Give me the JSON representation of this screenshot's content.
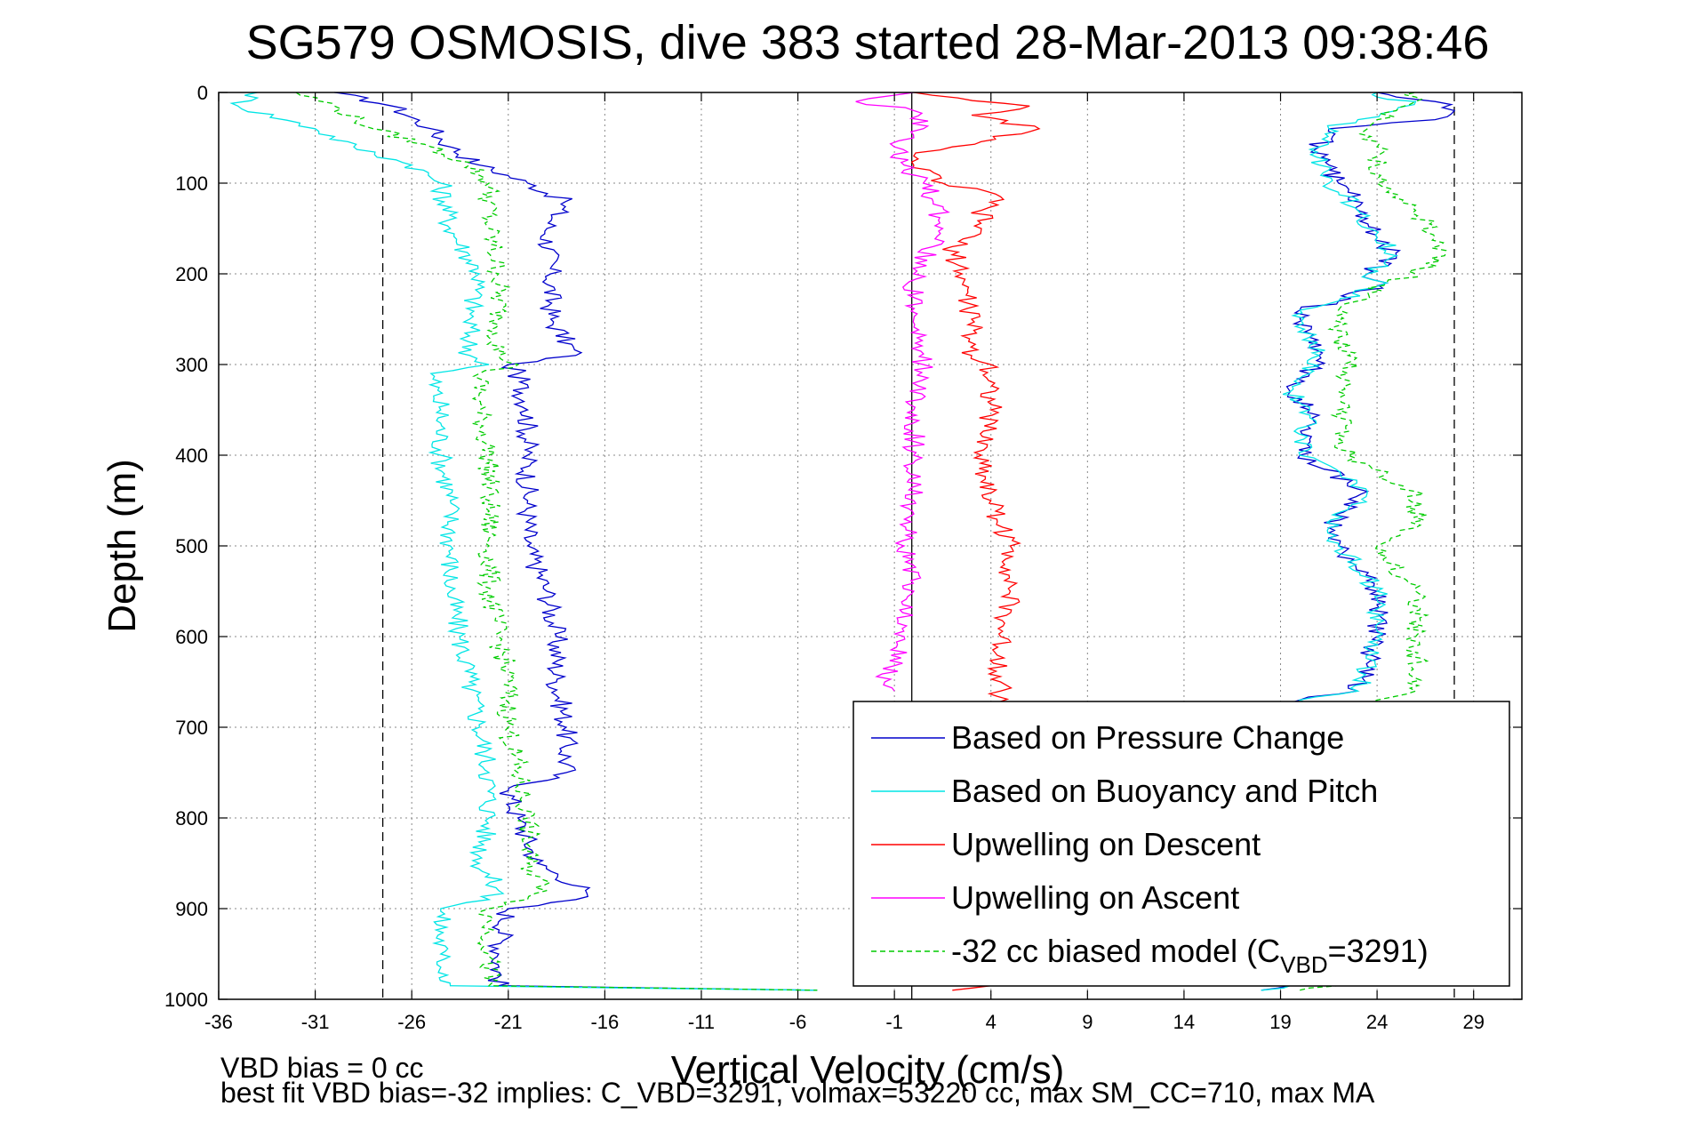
{
  "chart_data": {
    "type": "line",
    "title": "SG579 OSMOSIS, dive 383 started 28-Mar-2013 09:38:46",
    "xlabel": "Vertical Velocity (cm/s)",
    "ylabel": "Depth (m)",
    "xlim": [
      -36,
      31.5
    ],
    "ylim": [
      1000,
      0
    ],
    "y_reversed": true,
    "grid": true,
    "xticks": [
      "-36",
      "-31",
      "-26",
      "-21",
      "-16",
      "-11",
      "-6",
      "-1",
      "4",
      "9",
      "14",
      "19",
      "24",
      "29"
    ],
    "yticks": [
      "0",
      "100",
      "200",
      "300",
      "400",
      "500",
      "600",
      "700",
      "800",
      "900",
      "1000"
    ],
    "reference_lines": {
      "dashed_x": [
        -27.5,
        28
      ],
      "solid_x": [
        -0.1
      ]
    },
    "legend_position": "lower-right",
    "legend": [
      {
        "label": "Based on Pressure Change",
        "color": "#0000cc",
        "dash": false
      },
      {
        "label": "Based on Buoyancy and Pitch",
        "color": "#00e5e5",
        "dash": false
      },
      {
        "label": "Upwelling on Descent",
        "color": "#ff0000",
        "dash": false
      },
      {
        "label": "Upwelling on Ascent",
        "color": "#ff00ff",
        "dash": false
      },
      {
        "label_prefix": "-32 cc biased model (C",
        "label_sub": "VBD",
        "label_suffix": "=3291)",
        "color": "#00cc00",
        "dash": true
      }
    ],
    "series": [
      {
        "key": "press_down",
        "color": "#0000cc",
        "depth": [
          0,
          15,
          40,
          60,
          80,
          100,
          120,
          150,
          200,
          250,
          290,
          300,
          310,
          350,
          400,
          450,
          500,
          550,
          600,
          650,
          700,
          750,
          770,
          800,
          850,
          880,
          890,
          900,
          950,
          985,
          990
        ],
        "values": [
          -30,
          -27,
          -25,
          -24,
          -22.5,
          -20,
          -18,
          -19,
          -18.8,
          -18.8,
          -17.5,
          -21,
          -20.5,
          -20,
          -20,
          -20,
          -20,
          -19,
          -18.5,
          -18.5,
          -18,
          -18,
          -21,
          -20.5,
          -19.5,
          -17,
          -17.5,
          -21,
          -21.5,
          -21.5,
          -5
        ]
      },
      {
        "key": "buoy_down",
        "color": "#00e5e5",
        "depth": [
          0,
          15,
          40,
          60,
          80,
          100,
          150,
          200,
          250,
          290,
          300,
          310,
          350,
          400,
          450,
          500,
          550,
          600,
          650,
          700,
          750,
          800,
          850,
          880,
          890,
          900,
          950,
          985,
          990
        ],
        "values": [
          -34,
          -35,
          -31,
          -29,
          -26,
          -24.5,
          -24,
          -22.5,
          -23,
          -23,
          -22,
          -25,
          -24.5,
          -24.5,
          -24,
          -24,
          -24,
          -23.5,
          -23,
          -22.5,
          -22,
          -22,
          -22.5,
          -21.5,
          -22,
          -24.5,
          -24.5,
          -24,
          -5
        ]
      },
      {
        "key": "model_down",
        "color": "#00cc00",
        "depth": [
          0,
          15,
          40,
          60,
          80,
          100,
          150,
          200,
          250,
          290,
          300,
          310,
          350,
          400,
          450,
          500,
          550,
          600,
          650,
          700,
          750,
          800,
          850,
          880,
          890,
          900,
          950,
          985,
          990
        ],
        "values": [
          -32,
          -30,
          -28,
          -25,
          -23,
          -22,
          -22,
          -21.5,
          -21.5,
          -21.5,
          -20.5,
          -22.5,
          -22.5,
          -22,
          -22,
          -22,
          -22,
          -21.5,
          -21,
          -21,
          -20.5,
          -20,
          -20,
          -19,
          -20,
          -22,
          -22,
          -22,
          -5
        ]
      },
      {
        "key": "press_up",
        "color": "#0000cc",
        "depth": [
          990,
          985,
          690,
          670,
          660,
          600,
          550,
          500,
          480,
          460,
          440,
          400,
          350,
          330,
          310,
          290,
          270,
          240,
          230,
          210,
          200,
          180,
          160,
          130,
          110,
          100,
          80,
          60,
          40,
          30,
          20,
          10,
          5,
          0
        ],
        "values": [
          18,
          19.5,
          19.5,
          20,
          23,
          24,
          24,
          22,
          21.5,
          22.5,
          23.5,
          20,
          20.5,
          19.5,
          20.5,
          21,
          20.5,
          20,
          22,
          24.5,
          23.5,
          25,
          24,
          23,
          22.5,
          22,
          21.5,
          21,
          21.5,
          27,
          28,
          27,
          25,
          24
        ]
      },
      {
        "key": "buoy_up",
        "color": "#00e5e5",
        "depth": [
          990,
          985,
          690,
          670,
          660,
          600,
          550,
          500,
          480,
          460,
          440,
          400,
          350,
          330,
          310,
          290,
          270,
          240,
          230,
          210,
          200,
          180,
          160,
          130,
          110,
          100,
          80,
          60,
          40,
          30,
          20,
          10,
          5,
          0
        ],
        "values": [
          18,
          19.5,
          19.5,
          20,
          23,
          24,
          24,
          22,
          21.5,
          22.5,
          23.5,
          20,
          20.5,
          19.5,
          20.5,
          21,
          20.5,
          20,
          22,
          24.5,
          23.5,
          25,
          24,
          23,
          22,
          21.5,
          21,
          21,
          21.5,
          23,
          25,
          26,
          24,
          24
        ]
      },
      {
        "key": "model_up",
        "color": "#00cc00",
        "depth": [
          990,
          985,
          690,
          670,
          660,
          600,
          550,
          500,
          480,
          460,
          440,
          400,
          350,
          330,
          310,
          290,
          270,
          240,
          230,
          210,
          200,
          180,
          160,
          130,
          110,
          100,
          80,
          60,
          40,
          30,
          20,
          10,
          5,
          0
        ],
        "values": [
          20,
          22,
          22,
          24,
          26,
          26,
          26,
          24,
          26,
          26,
          26,
          22.5,
          22,
          22,
          22.5,
          22.5,
          22,
          22,
          23,
          24.5,
          26,
          27.5,
          27,
          26,
          24.5,
          24,
          24,
          24,
          23.5,
          24,
          25,
          26,
          26,
          26
        ]
      },
      {
        "key": "upwell_descent",
        "color": "#ff0000",
        "depth": [
          0,
          15,
          25,
          40,
          60,
          70,
          80,
          100,
          115,
          130,
          150,
          170,
          200,
          250,
          290,
          300,
          350,
          400,
          450,
          500,
          550,
          600,
          650,
          660,
          985,
          990
        ],
        "values": [
          0,
          6,
          3,
          6.5,
          2,
          0,
          0,
          1.5,
          4.5,
          3.5,
          3.5,
          2,
          2.5,
          3,
          3,
          4,
          4,
          3.5,
          4,
          5,
          5,
          4.5,
          4.5,
          4.5,
          4,
          2
        ]
      },
      {
        "key": "upwell_ascent",
        "color": "#ff00ff",
        "depth": [
          660,
          650,
          600,
          550,
          500,
          450,
          400,
          350,
          300,
          250,
          200,
          170,
          150,
          120,
          100,
          80,
          60,
          50,
          40,
          20,
          10,
          0
        ],
        "values": [
          -1,
          -1.5,
          -0.5,
          0,
          -0.5,
          0,
          0,
          0,
          0.5,
          0,
          0,
          1,
          1.5,
          1,
          0.5,
          -0.5,
          -1,
          0,
          0.5,
          0,
          -3,
          0
        ]
      }
    ]
  },
  "footer": {
    "line1": "VBD bias = 0 cc",
    "line2": "best fit VBD bias=-32 implies: C_VBD=3291, volmax=53220 cc, max SM_CC=710, max MA"
  },
  "colors": {
    "background": "#ffffff",
    "axes": "#000000",
    "grid": "#888888"
  }
}
